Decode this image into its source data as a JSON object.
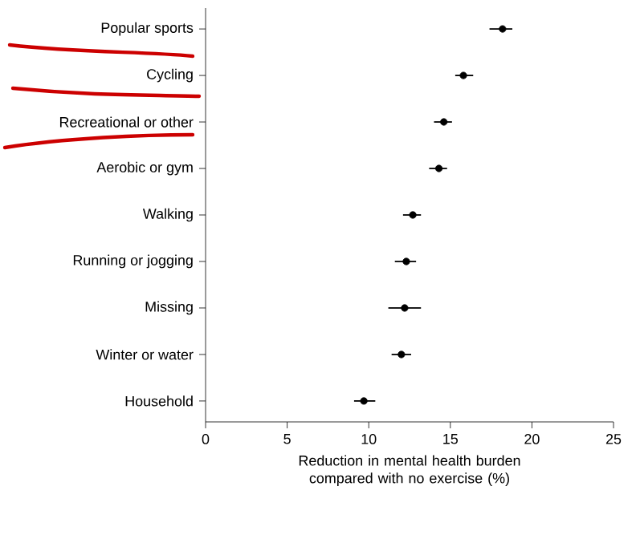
{
  "chart_data": {
    "type": "scatter",
    "orientation": "horizontal",
    "xlabel": "Reduction in mental health burden compared with no exercise (%)",
    "categories": [
      "Popular sports",
      "Cycling",
      "Recreational or other",
      "Aerobic or gym",
      "Walking",
      "Running or jogging",
      "Missing",
      "Winter or water",
      "Household"
    ],
    "values": [
      18.2,
      15.8,
      14.6,
      14.3,
      12.7,
      12.3,
      12.2,
      12.0,
      9.7
    ],
    "errors": [
      [
        17.4,
        18.8
      ],
      [
        15.3,
        16.4
      ],
      [
        14.0,
        15.1
      ],
      [
        13.7,
        14.8
      ],
      [
        12.1,
        13.2
      ],
      [
        11.6,
        12.9
      ],
      [
        11.2,
        13.2
      ],
      [
        11.4,
        12.6
      ],
      [
        9.1,
        10.4
      ]
    ],
    "color": "#000000",
    "xlim": [
      0,
      25
    ],
    "xticks": [
      0,
      5,
      10,
      15,
      20,
      25
    ]
  }
}
